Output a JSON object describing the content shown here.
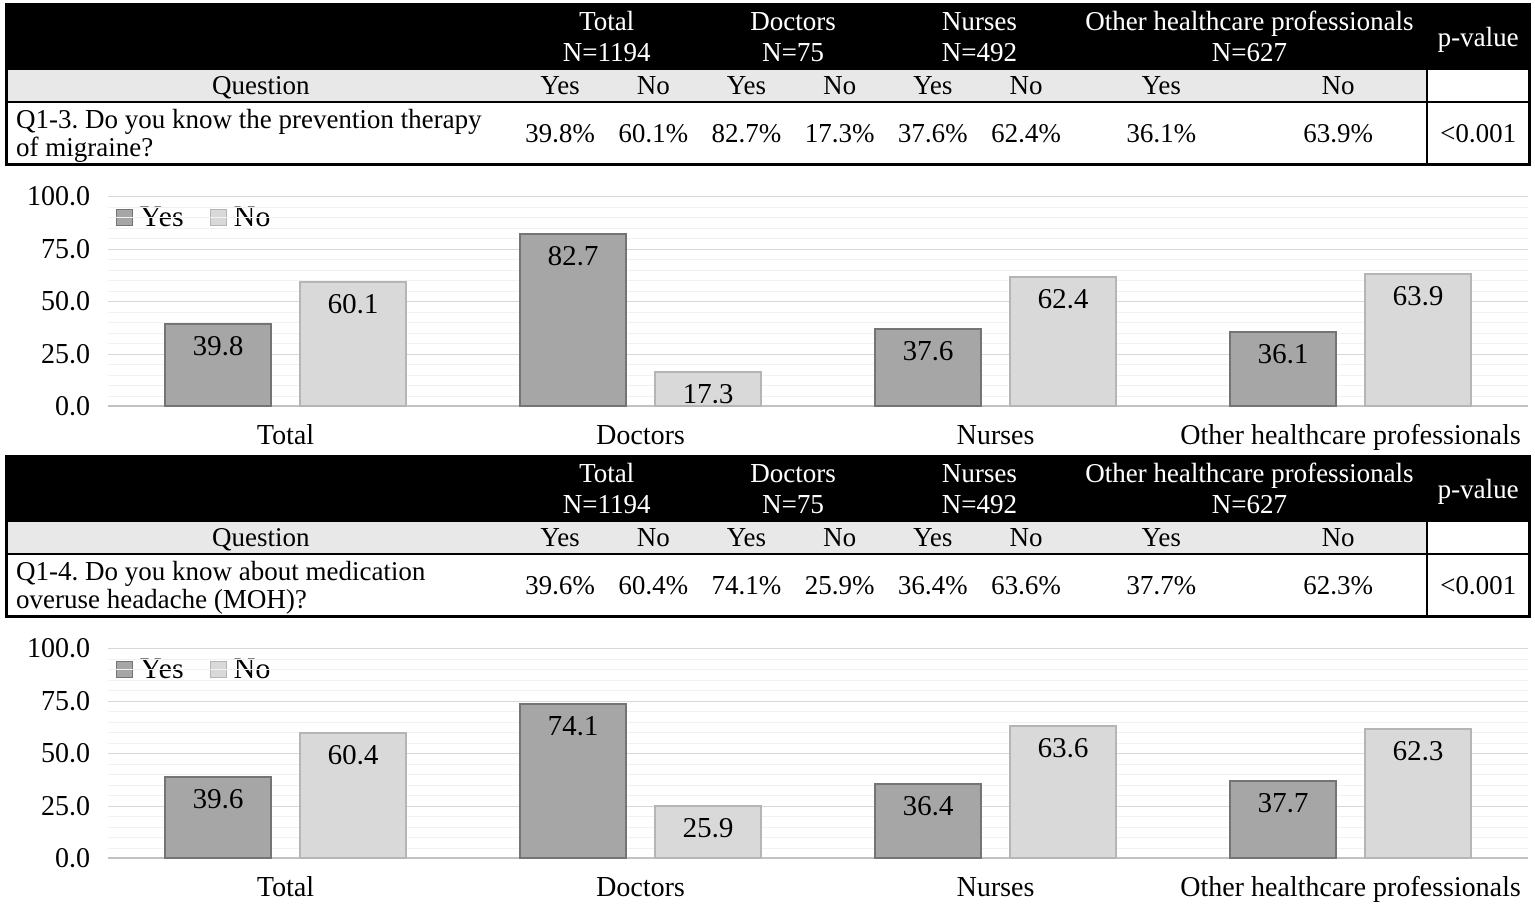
{
  "colors": {
    "yes_fill": "#a6a6a6",
    "yes_border": "#747474",
    "no_fill": "#d9d9d9",
    "no_border": "#b5b5b5",
    "grid_minor": "#f1f1f1",
    "grid_major": "#d8d8d8",
    "grid_zero": "#c2c2c2",
    "header_bg": "#000000",
    "header_fg": "#ffffff",
    "band_bg": "#e8e8e8"
  },
  "tables": [
    {
      "question_header": "Question",
      "yes_label": "Yes",
      "no_label": "No",
      "p_value_header": "p-value",
      "groups": [
        {
          "label": "Total",
          "n": "N=1194"
        },
        {
          "label": "Doctors",
          "n": "N=75"
        },
        {
          "label": "Nurses",
          "n": "N=492"
        },
        {
          "label": "Other healthcare professionals",
          "n": "N=627"
        }
      ],
      "question": "Q1-3. Do you know the prevention therapy of migraine?",
      "values": [
        "39.8%",
        "60.1%",
        "82.7%",
        "17.3%",
        "37.6%",
        "62.4%",
        "36.1%",
        "63.9%"
      ],
      "p_value": "<0.001"
    },
    {
      "question_header": "Question",
      "yes_label": "Yes",
      "no_label": "No",
      "p_value_header": "p-value",
      "groups": [
        {
          "label": "Total",
          "n": "N=1194"
        },
        {
          "label": "Doctors",
          "n": "N=75"
        },
        {
          "label": "Nurses",
          "n": "N=492"
        },
        {
          "label": "Other healthcare professionals",
          "n": "N=627"
        }
      ],
      "question": "Q1-4. Do you know about medication overuse headache (MOH)?",
      "values": [
        "39.6%",
        "60.4%",
        "74.1%",
        "25.9%",
        "36.4%",
        "63.6%",
        "37.7%",
        "62.3%"
      ],
      "p_value": "<0.001"
    }
  ],
  "chart_data": [
    {
      "type": "bar",
      "title": "",
      "xlabel": "",
      "ylabel": "",
      "categories": [
        "Total",
        "Doctors",
        "Nurses",
        "Other healthcare professionals"
      ],
      "series": [
        {
          "name": "Yes",
          "values": [
            39.8,
            82.7,
            37.6,
            36.1
          ]
        },
        {
          "name": "No",
          "values": [
            60.1,
            17.3,
            62.4,
            63.9
          ]
        }
      ],
      "ylim": [
        0,
        100
      ],
      "y_ticks": [
        "100.0",
        "75.0",
        "50.0",
        "25.0",
        "0.0"
      ],
      "grid_minor": 5,
      "grid_major": 25,
      "legend_position": "top-left",
      "bar_value_labels": true
    },
    {
      "type": "bar",
      "title": "",
      "xlabel": "",
      "ylabel": "",
      "categories": [
        "Total",
        "Doctors",
        "Nurses",
        "Other healthcare professionals"
      ],
      "series": [
        {
          "name": "Yes",
          "values": [
            39.6,
            74.1,
            36.4,
            37.7
          ]
        },
        {
          "name": "No",
          "values": [
            60.4,
            25.9,
            63.6,
            62.3
          ]
        }
      ],
      "ylim": [
        0,
        100
      ],
      "y_ticks": [
        "100.0",
        "75.0",
        "50.0",
        "25.0",
        "0.0"
      ],
      "grid_minor": 5,
      "grid_major": 25,
      "legend_position": "top-left",
      "bar_value_labels": true
    }
  ]
}
